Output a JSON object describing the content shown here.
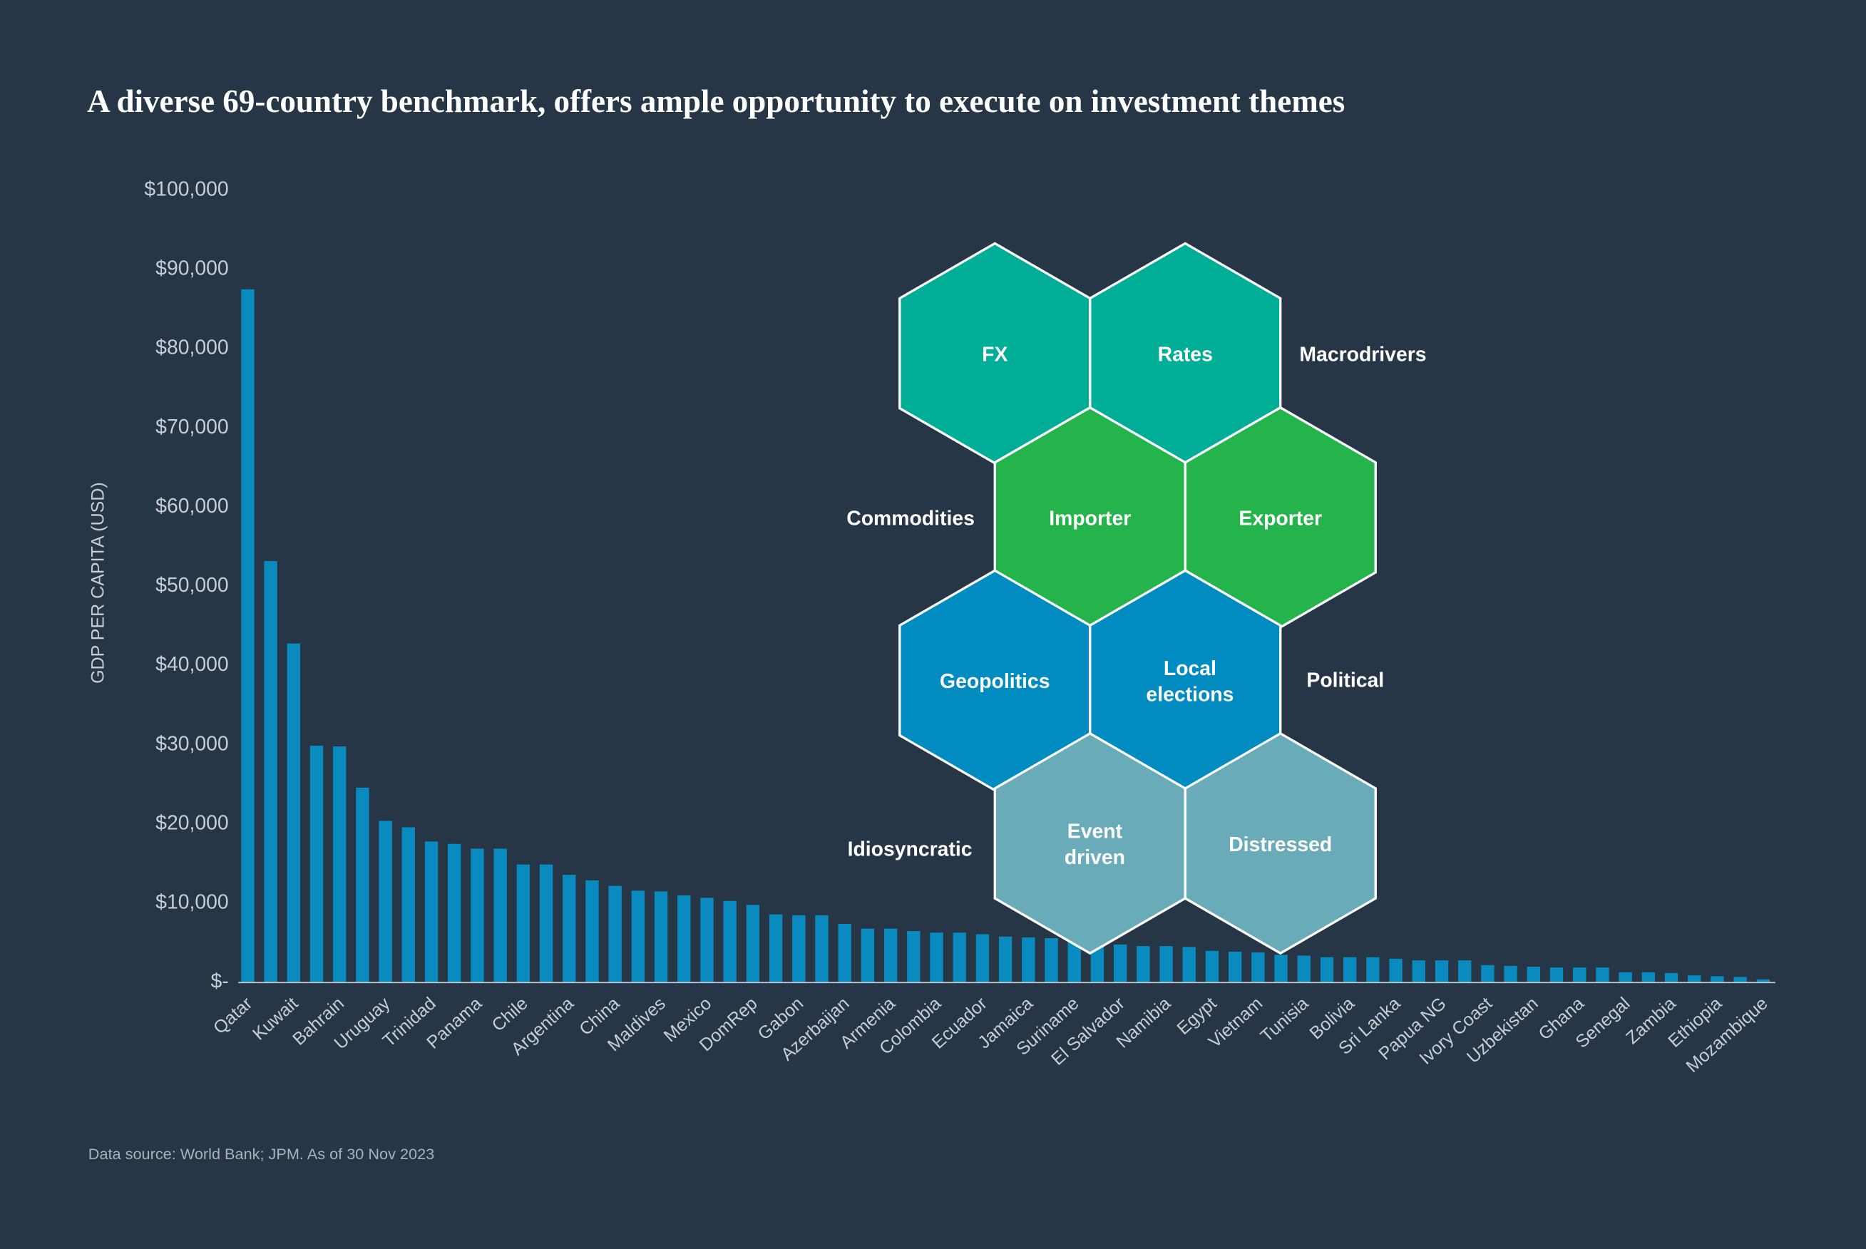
{
  "chart_data": {
    "type": "bar",
    "title": "A diverse 69-country benchmark, offers ample opportunity to execute on investment themes",
    "y_label": "GDP PER CAPITA (USD)",
    "source": "Data source: World Bank; JPM. As of 30 Nov 2023",
    "color": "#0a8bc0",
    "categories": [
      "Qatar",
      null,
      "Kuwait",
      null,
      "Bahrain",
      null,
      "Uruguay",
      null,
      "Trinidad",
      null,
      "Panama",
      null,
      "Chile",
      null,
      "Argentina",
      null,
      "China",
      null,
      "Maldives",
      null,
      "Mexico",
      null,
      "DomRep",
      null,
      "Gabon",
      null,
      "Azerbaijan",
      null,
      "Armenia",
      null,
      "Colombia",
      null,
      "Ecuador",
      null,
      "Jamaica",
      null,
      "Suriname",
      null,
      "El Salvador",
      null,
      "Namibia",
      null,
      "Egypt",
      null,
      "Vietnam",
      null,
      "Tunisia",
      null,
      "Bolivia",
      null,
      "Sri Lanka",
      null,
      "Papua NG",
      null,
      "Ivory Coast",
      null,
      "Uzbekistan",
      null,
      "Ghana",
      null,
      "Senegal",
      null,
      "Zambia",
      null,
      "Ethiopia",
      null,
      "Mozambique"
    ],
    "values": [
      87500,
      53200,
      42800,
      29900,
      29800,
      24600,
      20400,
      19600,
      17800,
      17500,
      16900,
      16900,
      14900,
      14900,
      13600,
      12900,
      12200,
      11600,
      11500,
      11000,
      10700,
      10300,
      9800,
      8600,
      8500,
      8500,
      7400,
      6800,
      6800,
      6500,
      6300,
      6300,
      6100,
      5800,
      5700,
      5600,
      5200,
      5000,
      4800,
      4600,
      4600,
      4500,
      4000,
      3900,
      3800,
      3500,
      3400,
      3200,
      3200,
      3200,
      3000,
      2800,
      2800,
      2800,
      2200,
      2100,
      2000,
      1900,
      1900,
      1900,
      1300,
      1300,
      1200,
      900,
      800,
      700,
      400
    ],
    "ylim": [
      0,
      100000
    ],
    "yticks": [
      {
        "value": 0,
        "label": "$-"
      },
      {
        "value": 10000,
        "label": "$10,000"
      },
      {
        "value": 20000,
        "label": "$20,000"
      },
      {
        "value": 30000,
        "label": "$30,000"
      },
      {
        "value": 40000,
        "label": "$40,000"
      },
      {
        "value": 50000,
        "label": "$50,000"
      },
      {
        "value": 60000,
        "label": "$60,000"
      },
      {
        "value": 70000,
        "label": "$70,000"
      },
      {
        "value": 80000,
        "label": "$80,000"
      },
      {
        "value": 90000,
        "label": "$90,000"
      },
      {
        "value": 100000,
        "label": "$100,000"
      }
    ],
    "grid": false
  },
  "themes": {
    "hexagons": [
      {
        "label": [
          "FX"
        ],
        "color": "#00ae97"
      },
      {
        "label": [
          "Rates"
        ],
        "color": "#00ae97"
      },
      {
        "label": [
          "Importer"
        ],
        "color": "#25b34b"
      },
      {
        "label": [
          "Exporter"
        ],
        "color": "#25b34b"
      },
      {
        "label": [
          "Geopolitics"
        ],
        "color": "#008bc1"
      },
      {
        "label": [
          "Local",
          "elections"
        ],
        "color": "#008bc1"
      },
      {
        "label": [
          "Event",
          "driven"
        ],
        "color": "#6aabba"
      },
      {
        "label": [
          "Distressed"
        ],
        "color": "#6aabba"
      }
    ],
    "groups": [
      "Macrodrivers",
      "Commodities",
      "Political",
      "Idiosyncratic"
    ]
  }
}
